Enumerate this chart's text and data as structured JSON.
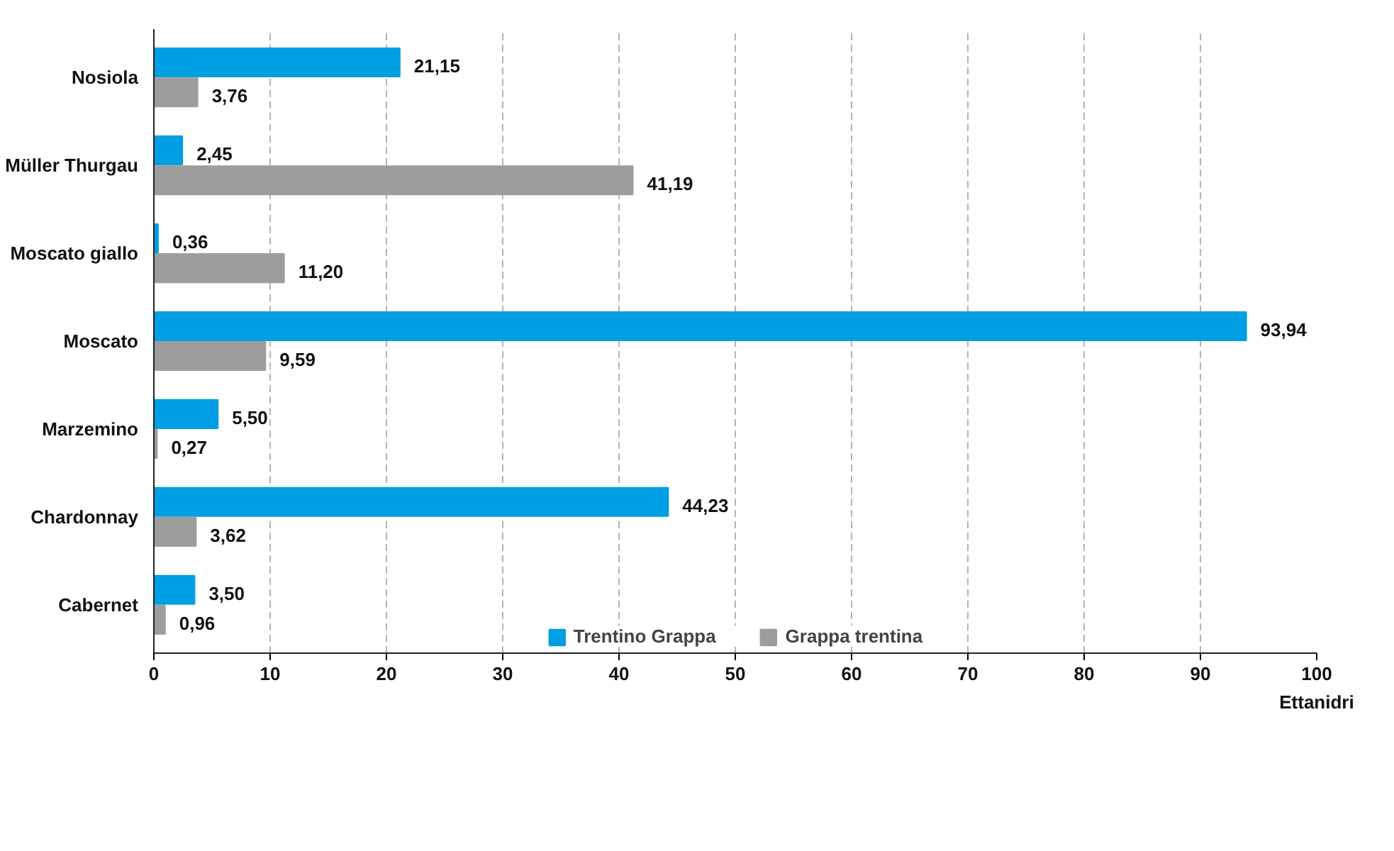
{
  "chart_data": {
    "type": "bar",
    "orientation": "horizontal",
    "xlabel": "Ettanidri",
    "categories": [
      "Nosiola",
      "Müller Thurgau",
      "Moscato giallo",
      "Moscato",
      "Marzemino",
      "Chardonnay",
      "Cabernet"
    ],
    "series": [
      {
        "name": "Trentino Grappa",
        "color": "#009fe3",
        "values": [
          21.15,
          2.45,
          0.36,
          93.94,
          5.5,
          44.23,
          3.5
        ],
        "value_labels": [
          "21,15",
          "2,45",
          "0,36",
          "93,94",
          "5,50",
          "44,23",
          "3,50"
        ]
      },
      {
        "name": "Grappa trentina",
        "color": "#9d9d9c",
        "values": [
          3.76,
          41.19,
          11.2,
          9.59,
          0.27,
          3.62,
          0.96
        ],
        "value_labels": [
          "3,76",
          "41,19",
          "11,20",
          "9,59",
          "0,27",
          "3,62",
          "0,96"
        ]
      }
    ],
    "xlim": [
      0,
      100
    ],
    "xticks": [
      0,
      10,
      20,
      30,
      40,
      50,
      60,
      70,
      80,
      90,
      100
    ],
    "grid": "x",
    "legend": "bottom"
  }
}
